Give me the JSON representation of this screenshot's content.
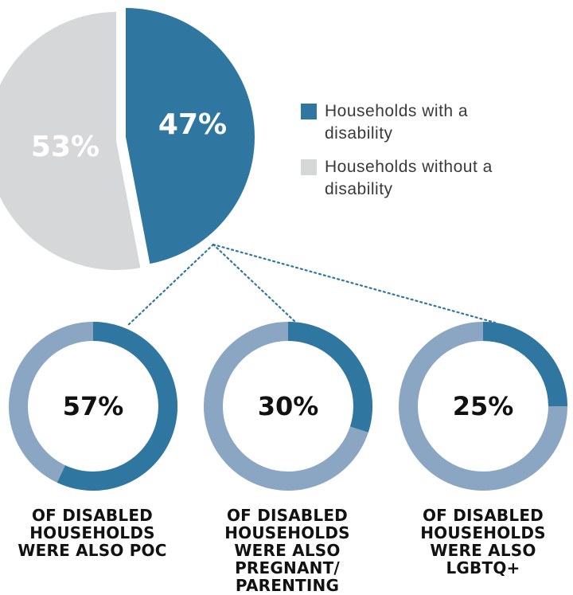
{
  "colors": {
    "disabled": "#2f76a1",
    "not_disabled": "#d6d7d9",
    "ring_remainder": "#8aa6c3",
    "connector": "#2f76a1"
  },
  "chart_data": [
    {
      "type": "pie",
      "slices": [
        {
          "label": "Households with a disability",
          "value": 47,
          "value_label": "47%"
        },
        {
          "label": "Households without a disability",
          "value": 53,
          "value_label": "53%"
        }
      ],
      "legend": [
        "Households with a disability",
        "Households without a disability"
      ],
      "legend_position": "right"
    },
    {
      "type": "donut",
      "value": 57,
      "value_label": "57%",
      "caption": "OF DISABLED HOUSEHOLDS WERE ALSO POC"
    },
    {
      "type": "donut",
      "value": 30,
      "value_label": "30%",
      "caption": "OF DISABLED HOUSEHOLDS WERE ALSO PREGNANT/ PARENTING"
    },
    {
      "type": "donut",
      "value": 25,
      "value_label": "25%",
      "caption": "OF DISABLED HOUSEHOLDS WERE ALSO LGBTQ+"
    }
  ],
  "legend": {
    "item_disabled": "Households with a disability",
    "item_not_disabled": "Households without a disability"
  },
  "captions": {
    "poc": "OF DISABLED HOUSEHOLDS WERE ALSO POC",
    "parenting": "OF DISABLED HOUSEHOLDS WERE ALSO PREGNANT/ PARENTING",
    "lgbtq": "OF DISABLED HOUSEHOLDS WERE ALSO LGBTQ+"
  }
}
